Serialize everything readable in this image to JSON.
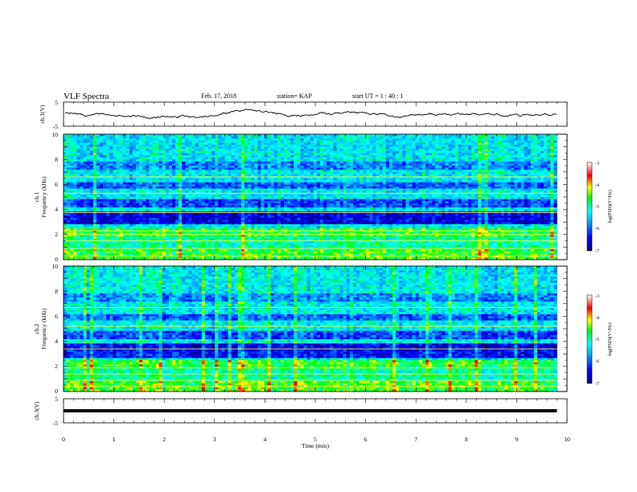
{
  "header": {
    "title": "VLF Spectra",
    "date": "Feb. 17, 2018",
    "station": "station= KAP",
    "start_time": "start  UT =  1 : 40 : 1"
  },
  "chart_data": [
    {
      "type": "line",
      "panel": "ch1-waveform",
      "ylabel": "ch.1(V)",
      "xlim": [
        0,
        10
      ],
      "ylim": [
        -5,
        5
      ],
      "yticks": [
        "5",
        "-5"
      ],
      "x_extent_min": 9.8,
      "series_color": "#000000"
    },
    {
      "type": "heatmap",
      "panel": "ch1-spectrogram",
      "ylabel_line1": "ch.1",
      "ylabel_line2": "Frequency (kHz)",
      "ylim": [
        0,
        10
      ],
      "yticks": [
        "0",
        "2",
        "4",
        "6",
        "8",
        "10"
      ],
      "xlim": [
        0,
        10
      ],
      "x_extent_min": 9.8,
      "colorbar": {
        "label": "log(PSD)(V²/Hz)",
        "range": [
          -7,
          -3
        ],
        "ticks": [
          "-3",
          "-4",
          "-5",
          "-6",
          "-7"
        ]
      }
    },
    {
      "type": "heatmap",
      "panel": "ch2-spectrogram",
      "ylabel_line1": "ch.2",
      "ylabel_line2": "Frequency (kHz)",
      "ylim": [
        0,
        10
      ],
      "yticks": [
        "0",
        "2",
        "4",
        "6",
        "8",
        "10"
      ],
      "xlim": [
        0,
        10
      ],
      "x_extent_min": 9.8,
      "colorbar": {
        "label": "log(PSD)(V²/Hz)",
        "range": [
          -7,
          -3
        ],
        "ticks": [
          "-3",
          "-4",
          "-5",
          "-6",
          "-7"
        ]
      }
    },
    {
      "type": "line",
      "panel": "ch3-waveform",
      "ylabel": "ch.3(V)",
      "xlim": [
        0,
        10
      ],
      "ylim": [
        -5,
        5
      ],
      "yticks": [
        "5",
        "-5"
      ],
      "x_extent_min": 9.8,
      "constant_value": 0,
      "xlabel": "Time  (min)",
      "xticks": [
        "0",
        "1",
        "2",
        "3",
        "4",
        "5",
        "6",
        "7",
        "8",
        "9",
        "10"
      ]
    }
  ]
}
